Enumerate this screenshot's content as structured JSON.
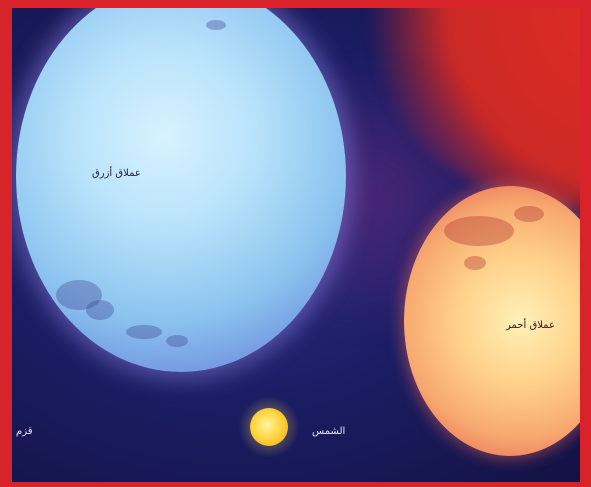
{
  "labels": {
    "blue_star": "عملاق أزرق",
    "red_star": "عملاق أحمر",
    "sun": "الشمس",
    "earth": "قزم"
  },
  "colors": {
    "frame": "#d8232a",
    "space": "#1c1e66",
    "blue_star": "#b9e3fb",
    "red_star": "#f7a970",
    "sun": "#ffd23a"
  }
}
